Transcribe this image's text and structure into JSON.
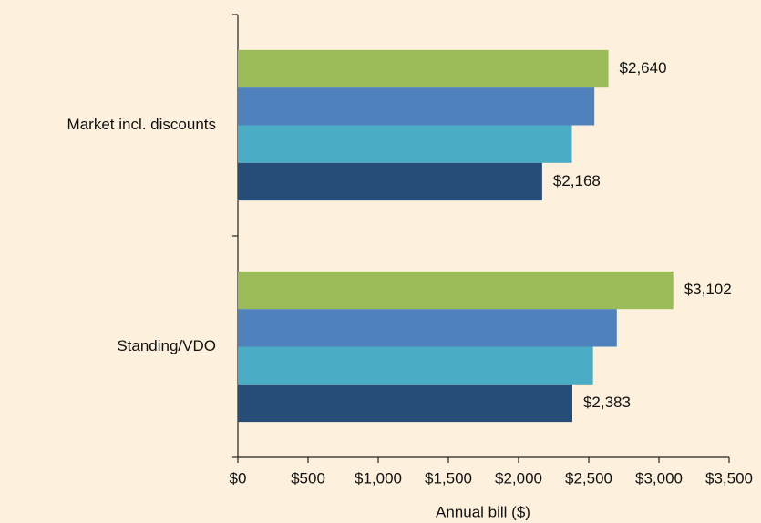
{
  "chart_data": {
    "type": "bar",
    "orientation": "horizontal",
    "xlabel": "Annual bill ($)",
    "categories": [
      "Market incl. discounts",
      "Standing/VDO"
    ],
    "series": [
      {
        "color": "#9bbb59",
        "values": [
          2640,
          3102
        ],
        "value_labels": [
          "$2,640",
          "$3,102"
        ]
      },
      {
        "color": "#4f81bd",
        "values": [
          2540,
          2700
        ],
        "value_labels": [
          null,
          null
        ]
      },
      {
        "color": "#4bacc6",
        "values": [
          2380,
          2530
        ],
        "value_labels": [
          null,
          null
        ]
      },
      {
        "color": "#264d78",
        "values": [
          2168,
          2383
        ],
        "value_labels": [
          "$2,168",
          "$2,383"
        ]
      }
    ],
    "xlim": [
      0,
      3500
    ],
    "xticks": [
      {
        "value": 0,
        "label": "$0"
      },
      {
        "value": 500,
        "label": "$500"
      },
      {
        "value": 1000,
        "label": "$1,000"
      },
      {
        "value": 1500,
        "label": "$1,500"
      },
      {
        "value": 2000,
        "label": "$2,000"
      },
      {
        "value": 2500,
        "label": "$2,500"
      },
      {
        "value": 3000,
        "label": "$3,000"
      },
      {
        "value": 3500,
        "label": "$3,500"
      }
    ],
    "grid": false
  }
}
